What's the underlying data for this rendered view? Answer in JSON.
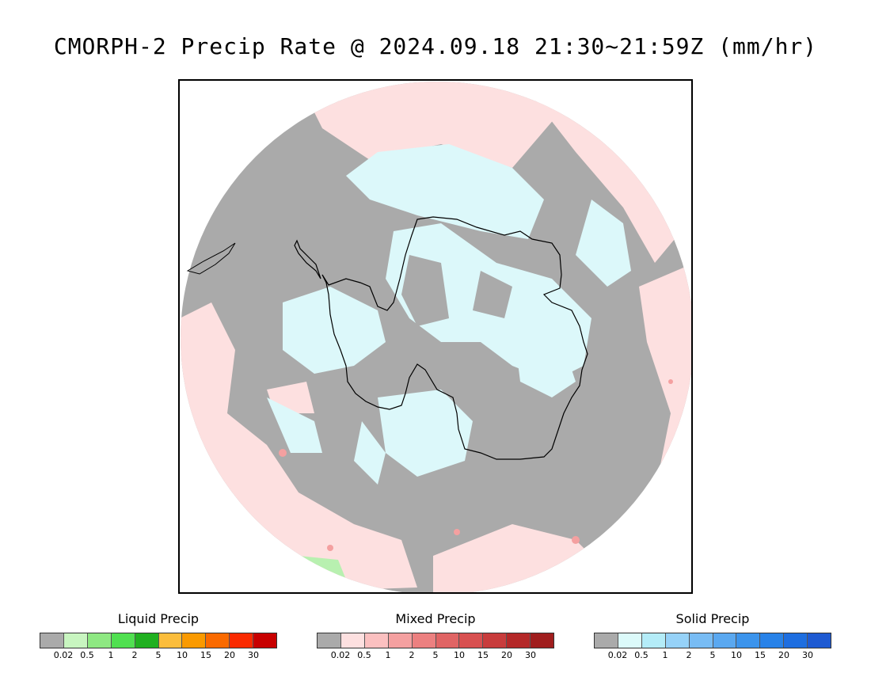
{
  "title": "CMORPH-2 Precip Rate @ 2024.09.18 21:30~21:59Z (mm/hr)",
  "map": {
    "projection": "south-polar-stereographic",
    "colors": {
      "no_precip": "#aaaaaa",
      "mixed_light": "#fde0e0",
      "solid_light": "#dcf8fa",
      "liquid_light": "#b8f0b0",
      "coastline": "#000000"
    }
  },
  "legends": [
    {
      "title": "Liquid Precip",
      "colors": [
        "#aaaaaa",
        "#c8f5c0",
        "#8ee882",
        "#50e050",
        "#20b020",
        "#fbbd3c",
        "#fa9a00",
        "#fa6a00",
        "#fa2a00",
        "#c80000"
      ],
      "ticks": [
        "0.02",
        "0.5",
        "1",
        "2",
        "5",
        "10",
        "15",
        "20",
        "30"
      ]
    },
    {
      "title": "Mixed Precip",
      "colors": [
        "#aaaaaa",
        "#fde0e0",
        "#fbc0c0",
        "#f4a0a0",
        "#ec8080",
        "#e06464",
        "#d85050",
        "#c83c3c",
        "#b42828",
        "#a01e1e"
      ],
      "ticks": [
        "0.02",
        "0.5",
        "1",
        "2",
        "5",
        "10",
        "15",
        "20",
        "30"
      ]
    },
    {
      "title": "Solid Precip",
      "colors": [
        "#aaaaaa",
        "#dcfafa",
        "#b4ecf8",
        "#96d2f8",
        "#78bcf4",
        "#5aa8f0",
        "#3c94ec",
        "#2882e8",
        "#1e6ee0",
        "#1e5ad2"
      ],
      "ticks": [
        "0.02",
        "0.5",
        "1",
        "2",
        "5",
        "10",
        "15",
        "20",
        "30"
      ]
    }
  ]
}
